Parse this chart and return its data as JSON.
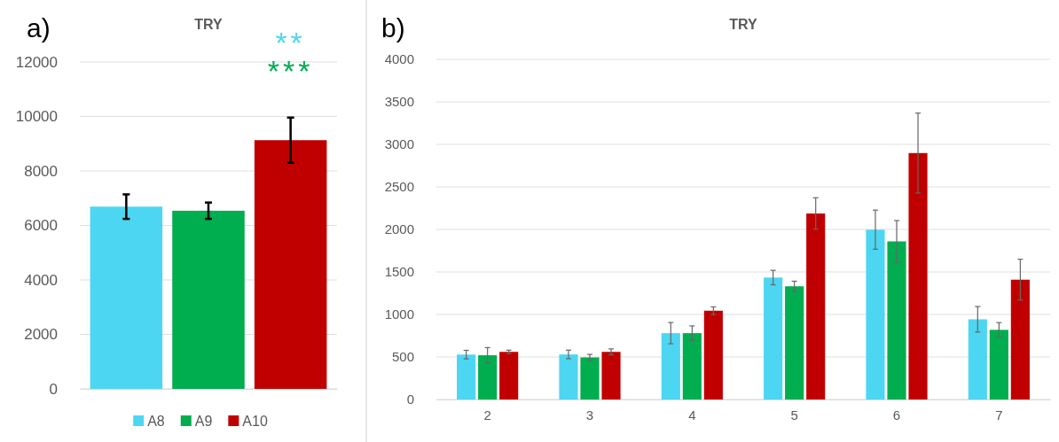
{
  "chart_data": [
    {
      "type": "bar",
      "title": "TRY",
      "annotations": [
        "a)",
        "**",
        "***"
      ],
      "categories": [
        null
      ],
      "series": [
        {
          "name": "A8",
          "color": "#4dd6f2",
          "values": [
            6690
          ],
          "errors": [
            450
          ]
        },
        {
          "name": "A9",
          "color": "#00ad4f",
          "values": [
            6540
          ],
          "errors": [
            300
          ]
        },
        {
          "name": "A10",
          "color": "#c00000",
          "values": [
            9130
          ],
          "errors": [
            830
          ]
        }
      ],
      "ylim": [
        0,
        12000
      ],
      "yticks": [
        0,
        2000,
        4000,
        6000,
        8000,
        10000,
        12000
      ],
      "grid": "y",
      "legend": "bottom"
    },
    {
      "type": "bar",
      "title": "TRY",
      "annotations": [
        "b)"
      ],
      "categories": [
        "2",
        "3",
        "4",
        "5",
        "6",
        "7"
      ],
      "series": [
        {
          "color": "#4dd6f2",
          "values": [
            528,
            530,
            780,
            1434,
            1997,
            943
          ],
          "errors": [
            50,
            50,
            125,
            85,
            230,
            150
          ]
        },
        {
          "color": "#00ad4f",
          "values": [
            520,
            495,
            780,
            1331,
            1859,
            819
          ],
          "errors": [
            90,
            35,
            85,
            60,
            245,
            85
          ]
        },
        {
          "color": "#c00000",
          "values": [
            560,
            560,
            1044,
            2187,
            2898,
            1409
          ],
          "errors": [
            20,
            35,
            45,
            185,
            470,
            240
          ]
        }
      ],
      "ylim": [
        0,
        4000
      ],
      "yticks": [
        0,
        500,
        1000,
        1500,
        2000,
        2500,
        3000,
        3500,
        4000
      ],
      "grid": "y"
    }
  ]
}
